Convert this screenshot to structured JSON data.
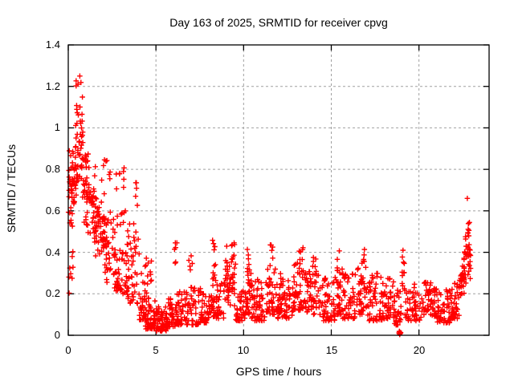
{
  "chart_data": {
    "type": "scatter",
    "title": "Day 163 of 2025, SRMTID for receiver cpvg",
    "xlabel": "GPS time / hours",
    "ylabel": "SRMTID / TECUs",
    "xlim": [
      0,
      24
    ],
    "ylim": [
      0,
      1.4
    ],
    "xticks": [
      0,
      5,
      10,
      15,
      20
    ],
    "xtick_labels": [
      "0",
      "5",
      "10",
      "15",
      "20"
    ],
    "yticks": [
      0,
      0.2,
      0.4,
      0.6,
      0.8,
      1,
      1.2,
      1.4
    ],
    "ytick_labels": [
      "0",
      "0.2",
      "0.4",
      "0.6",
      "0.8",
      "1",
      "1.2",
      "1.4"
    ],
    "grid": true,
    "legend_position": "none",
    "marker": "plus-cross",
    "marker_color": "#ff0000",
    "axis_color": "#000000",
    "grid_color": "#a0a0a0",
    "background_color": "#ffffff",
    "series": [
      {
        "name": "SRMTID",
        "color": "#ff0000",
        "seed": 163,
        "bin_format": "[hour_start, hour_end, point_count, value_min, value_max, shape(u=uniform,l=low-biased,m=mid-peaked)]",
        "bins": [
          [
            0.0,
            0.35,
            30,
            0.45,
            0.92,
            "m"
          ],
          [
            0.02,
            0.3,
            8,
            0.15,
            0.45,
            "u"
          ],
          [
            0.15,
            0.55,
            25,
            0.55,
            1.05,
            "m"
          ],
          [
            0.4,
            0.85,
            40,
            0.6,
            1.26,
            "m"
          ],
          [
            0.7,
            1.2,
            35,
            0.5,
            1.0,
            "m"
          ],
          [
            1.0,
            1.6,
            40,
            0.4,
            0.85,
            "m"
          ],
          [
            1.5,
            2.1,
            45,
            0.3,
            0.72,
            "m"
          ],
          [
            1.9,
            2.4,
            8,
            0.72,
            0.86,
            "u"
          ],
          [
            2.0,
            2.7,
            45,
            0.22,
            0.62,
            "m"
          ],
          [
            2.6,
            3.4,
            50,
            0.2,
            0.6,
            "l"
          ],
          [
            2.7,
            3.25,
            8,
            0.7,
            0.86,
            "u"
          ],
          [
            3.3,
            4.0,
            45,
            0.15,
            0.55,
            "l"
          ],
          [
            3.75,
            3.95,
            5,
            0.58,
            0.74,
            "u"
          ],
          [
            4.0,
            4.5,
            38,
            0.07,
            0.4,
            "l"
          ],
          [
            4.5,
            4.75,
            8,
            0.22,
            0.45,
            "u"
          ],
          [
            4.4,
            5.0,
            50,
            0.03,
            0.18,
            "l"
          ],
          [
            5.0,
            5.6,
            60,
            0.02,
            0.14,
            "l"
          ],
          [
            5.6,
            6.2,
            50,
            0.04,
            0.18,
            "l"
          ],
          [
            6.0,
            6.25,
            6,
            0.28,
            0.45,
            "u"
          ],
          [
            6.2,
            6.8,
            42,
            0.05,
            0.22,
            "l"
          ],
          [
            6.85,
            7.1,
            5,
            0.28,
            0.42,
            "u"
          ],
          [
            6.8,
            7.6,
            48,
            0.05,
            0.24,
            "l"
          ],
          [
            7.6,
            8.2,
            45,
            0.06,
            0.2,
            "l"
          ],
          [
            8.2,
            8.45,
            8,
            0.28,
            0.46,
            "u"
          ],
          [
            8.2,
            8.9,
            45,
            0.08,
            0.28,
            "l"
          ],
          [
            8.9,
            9.55,
            45,
            0.12,
            0.38,
            "m"
          ],
          [
            9.0,
            9.5,
            14,
            0.3,
            0.45,
            "u"
          ],
          [
            9.55,
            10.1,
            38,
            0.07,
            0.22,
            "l"
          ],
          [
            10.1,
            10.45,
            30,
            0.1,
            0.3,
            "l"
          ],
          [
            10.15,
            10.4,
            8,
            0.3,
            0.44,
            "u"
          ],
          [
            10.45,
            11.3,
            55,
            0.07,
            0.28,
            "l"
          ],
          [
            11.3,
            11.9,
            42,
            0.1,
            0.32,
            "l"
          ],
          [
            11.5,
            11.72,
            6,
            0.32,
            0.44,
            "u"
          ],
          [
            11.9,
            12.8,
            58,
            0.08,
            0.3,
            "l"
          ],
          [
            12.8,
            13.5,
            48,
            0.12,
            0.35,
            "l"
          ],
          [
            13.15,
            13.4,
            7,
            0.34,
            0.44,
            "u"
          ],
          [
            13.5,
            14.5,
            58,
            0.1,
            0.32,
            "l"
          ],
          [
            13.9,
            14.15,
            5,
            0.3,
            0.4,
            "u"
          ],
          [
            14.5,
            15.2,
            48,
            0.07,
            0.28,
            "l"
          ],
          [
            15.2,
            15.65,
            32,
            0.1,
            0.35,
            "l"
          ],
          [
            15.3,
            15.55,
            5,
            0.3,
            0.44,
            "u"
          ],
          [
            15.65,
            16.5,
            52,
            0.08,
            0.3,
            "l"
          ],
          [
            16.5,
            17.05,
            38,
            0.1,
            0.35,
            "l"
          ],
          [
            16.7,
            16.95,
            6,
            0.34,
            0.46,
            "u"
          ],
          [
            17.05,
            18.0,
            58,
            0.07,
            0.3,
            "l"
          ],
          [
            18.0,
            18.6,
            42,
            0.08,
            0.28,
            "l"
          ],
          [
            18.6,
            19.0,
            26,
            0.05,
            0.22,
            "l"
          ],
          [
            18.8,
            18.97,
            9,
            0.0,
            0.02,
            "u"
          ],
          [
            19.02,
            19.2,
            12,
            0.2,
            0.42,
            "u"
          ],
          [
            19.2,
            20.3,
            55,
            0.07,
            0.25,
            "l"
          ],
          [
            20.3,
            21.0,
            48,
            0.09,
            0.26,
            "l"
          ],
          [
            21.0,
            21.8,
            52,
            0.06,
            0.22,
            "l"
          ],
          [
            21.8,
            22.3,
            38,
            0.08,
            0.26,
            "l"
          ],
          [
            22.3,
            22.6,
            28,
            0.14,
            0.38,
            "m"
          ],
          [
            22.55,
            22.95,
            32,
            0.22,
            0.55,
            "m"
          ],
          [
            22.65,
            22.9,
            8,
            0.45,
            0.58,
            "u"
          ]
        ],
        "outliers": [
          [
            0.66,
            1.25
          ],
          [
            22.76,
            0.66
          ]
        ]
      }
    ]
  }
}
